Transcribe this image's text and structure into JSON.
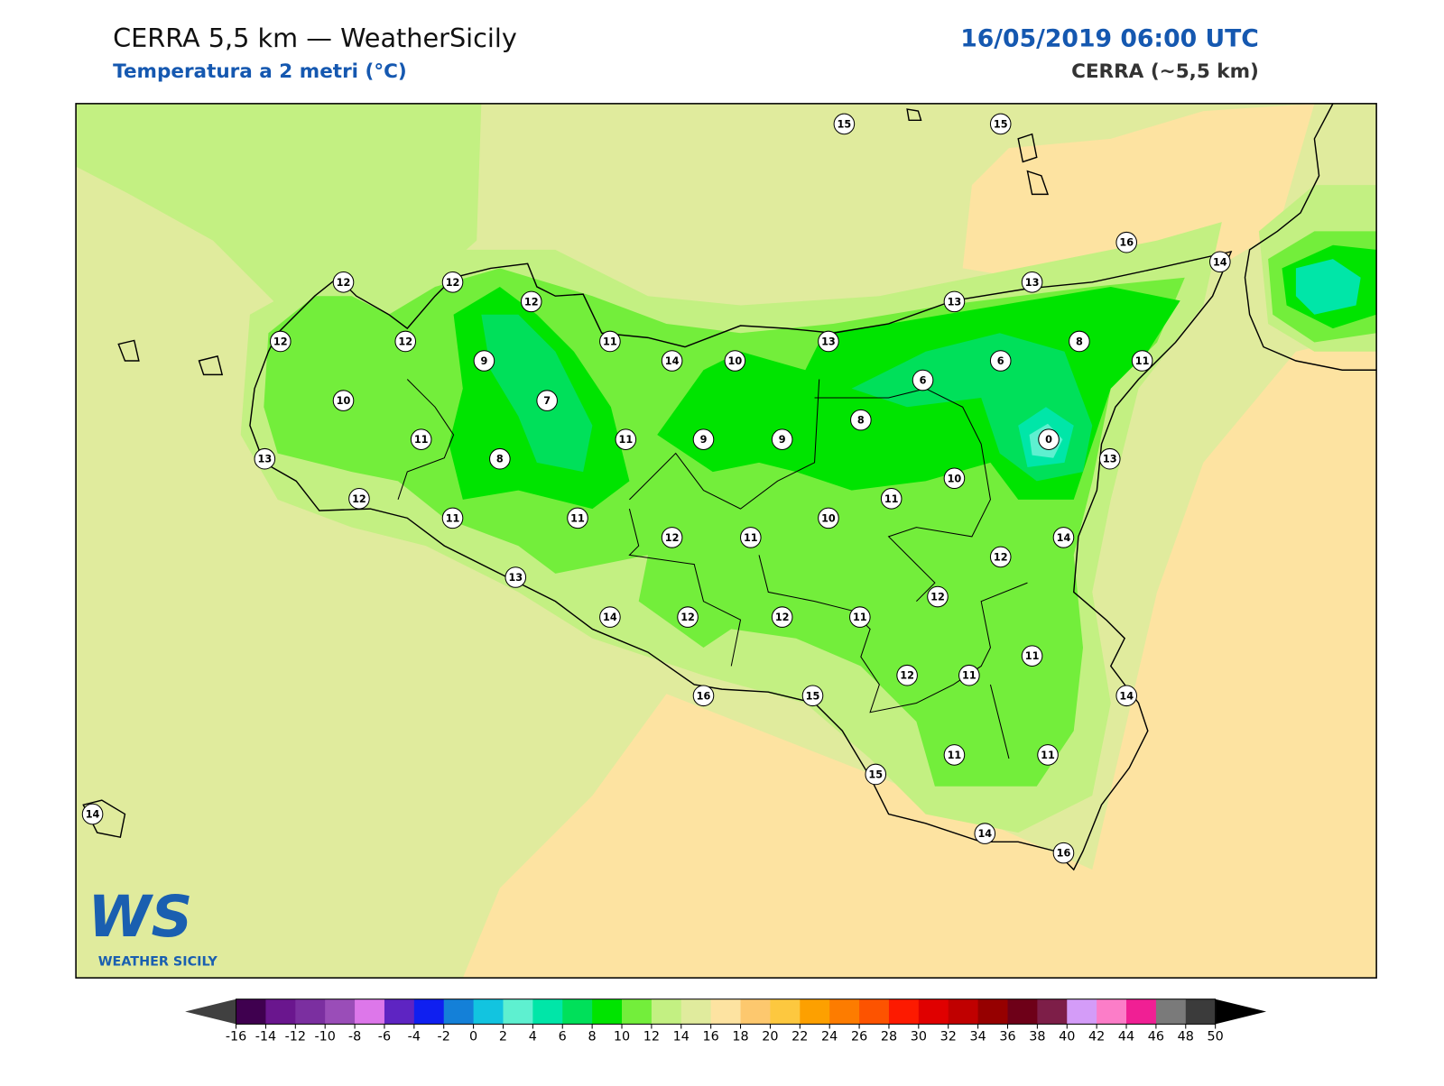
{
  "header": {
    "title": "CERRA 5,5 km — WeatherSicily",
    "subtitle": "Temperatura a 2 metri (°C)",
    "date": "16/05/2019 06:00 UTC",
    "model": "CERRA (~5,5 km)"
  },
  "logo": {
    "mark": "WS",
    "name": "WEATHER SICILY"
  },
  "stations": [
    15,
    15,
    16,
    14,
    12,
    12,
    12,
    13,
    13,
    12,
    12,
    11,
    13,
    8,
    9,
    14,
    10,
    6,
    11,
    6,
    10,
    7,
    8,
    11,
    11,
    9,
    9,
    0,
    13,
    8,
    13,
    10,
    12,
    11,
    11,
    11,
    10,
    12,
    11,
    14,
    12,
    13,
    12,
    14,
    12,
    12,
    11,
    11,
    12,
    11,
    16,
    15,
    14,
    11,
    11,
    15,
    14,
    14,
    16
  ],
  "colorbar": {
    "ticks": [
      -16,
      -14,
      -12,
      -10,
      -8,
      -6,
      -4,
      -2,
      0,
      2,
      4,
      6,
      8,
      10,
      12,
      14,
      16,
      18,
      20,
      22,
      24,
      26,
      28,
      30,
      32,
      34,
      36,
      38,
      40,
      42,
      44,
      46,
      48,
      50
    ],
    "colors": [
      "#3f004f",
      "#6a168e",
      "#7b2fa0",
      "#9a4db8",
      "#dd77ea",
      "#5e24c2",
      "#0f1ff0",
      "#1480d8",
      "#12c4e0",
      "#5ef0d0",
      "#00e6a8",
      "#00e05a",
      "#00e400",
      "#73ee3b",
      "#c3f082",
      "#e0eb9d",
      "#fde3a1",
      "#fdc86e",
      "#fdc83f",
      "#fda000",
      "#fd7c00",
      "#fd5300",
      "#fd1a00",
      "#e00000",
      "#c00000",
      "#960000",
      "#6e0018",
      "#7d1e48",
      "#d49cf8",
      "#fc7dc8",
      "#f01f94",
      "#7a7a7a",
      "#3b3b3b"
    ],
    "under_color": "#404040",
    "over_color": "#000000"
  }
}
